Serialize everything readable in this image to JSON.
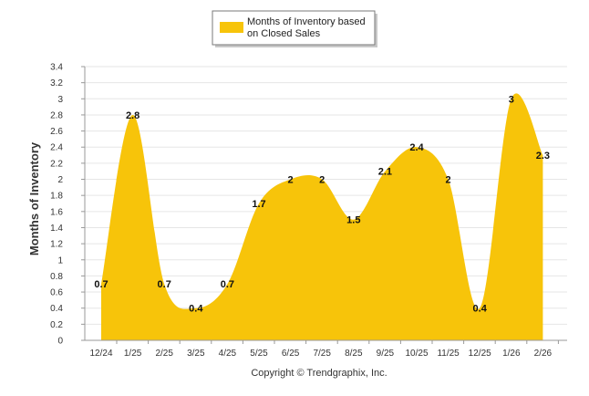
{
  "chart_data": {
    "type": "area",
    "categories": [
      "12/24",
      "1/25",
      "2/25",
      "3/25",
      "4/25",
      "5/25",
      "6/25",
      "7/25",
      "8/25",
      "9/25",
      "10/25",
      "11/25",
      "12/25",
      "1/26",
      "2/26"
    ],
    "series": [
      {
        "name": "Months of Inventory based on Closed Sales",
        "values": [
          0.7,
          2.8,
          0.7,
          0.4,
          0.7,
          1.7,
          2,
          2,
          1.5,
          2.1,
          2.4,
          2,
          0.4,
          3,
          2.3
        ],
        "color": "#f7c40a"
      }
    ],
    "data_labels": [
      "0.7",
      "2.8",
      "0.7",
      "0.4",
      "0.7",
      "1.7",
      "2",
      "2",
      "1.5",
      "2.1",
      "2.4",
      "2",
      "0.4",
      "3",
      "2.3"
    ],
    "ylabel": "Months of Inventory",
    "xlabel": "",
    "ylim": [
      0,
      3.4
    ],
    "yticks": [
      "0",
      "0.2",
      "0.4",
      "0.6",
      "0.8",
      "1",
      "1.2",
      "1.4",
      "1.6",
      "1.8",
      "2",
      "2.2",
      "2.4",
      "2.6",
      "2.8",
      "3",
      "3.2",
      "3.4"
    ],
    "grid": true,
    "legend_position": "top-center",
    "legend_lines": [
      "Months of Inventory based",
      "on Closed Sales"
    ]
  },
  "footer": {
    "copyright": "Copyright © Trendgraphix, Inc."
  },
  "colors": {
    "fill": "#f7c40a",
    "grid": "#e6e6e6",
    "axis": "#999999"
  }
}
